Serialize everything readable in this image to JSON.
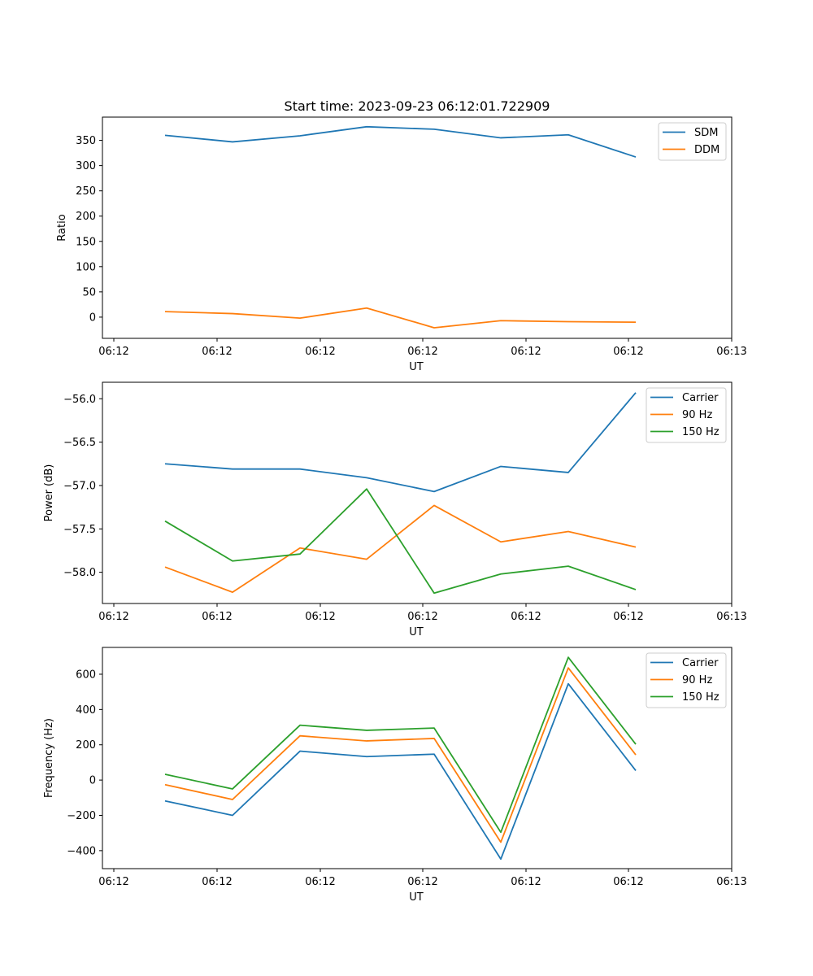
{
  "colors": {
    "c0": "#1f77b4",
    "c1": "#ff7f0e",
    "c2": "#2ca02c"
  },
  "chart_data": [
    {
      "type": "line",
      "title": "Start time: 2023-09-23 06:12:01.722909",
      "xlabel": "UT",
      "ylabel": "Ratio",
      "x_tick_labels": [
        "06:12",
        "06:12",
        "06:12",
        "06:12",
        "06:12",
        "06:12",
        "06:13"
      ],
      "y_ticks": [
        0,
        50,
        100,
        150,
        200,
        250,
        300,
        350
      ],
      "y_tick_labels": [
        "0",
        "50",
        "100",
        "150",
        "200",
        "250",
        "300",
        "350"
      ],
      "ylim": [
        -42,
        396
      ],
      "legend": "top-right",
      "series": [
        {
          "name": "SDM",
          "color": "#1f77b4",
          "values": [
            360,
            347,
            359,
            377,
            372,
            355,
            361,
            317
          ]
        },
        {
          "name": "DDM",
          "color": "#ff7f0e",
          "values": [
            11,
            7,
            -2,
            18,
            -21,
            -7,
            -9,
            -10
          ]
        }
      ]
    },
    {
      "type": "line",
      "title": "",
      "xlabel": "UT",
      "ylabel": "Power (dB)",
      "x_tick_labels": [
        "06:12",
        "06:12",
        "06:12",
        "06:12",
        "06:12",
        "06:12",
        "06:13"
      ],
      "y_ticks": [
        -58.0,
        -57.5,
        -57.0,
        -56.5,
        -56.0
      ],
      "y_tick_labels": [
        "−58.0",
        "−57.5",
        "−57.0",
        "−56.5",
        "−56.0"
      ],
      "ylim": [
        -58.36,
        -55.81
      ],
      "legend": "top-right",
      "series": [
        {
          "name": "Carrier",
          "color": "#1f77b4",
          "values": [
            -56.75,
            -56.81,
            -56.81,
            -56.91,
            -57.07,
            -56.78,
            -56.85,
            -55.93
          ]
        },
        {
          "name": "90 Hz",
          "color": "#ff7f0e",
          "values": [
            -57.94,
            -58.23,
            -57.72,
            -57.85,
            -57.23,
            -57.65,
            -57.53,
            -57.71
          ]
        },
        {
          "name": "150 Hz",
          "color": "#2ca02c",
          "values": [
            -57.41,
            -57.87,
            -57.79,
            -57.04,
            -58.24,
            -58.02,
            -57.93,
            -58.2
          ]
        }
      ]
    },
    {
      "type": "line",
      "title": "",
      "xlabel": "UT",
      "ylabel": "Frequency (Hz)",
      "x_tick_labels": [
        "06:12",
        "06:12",
        "06:12",
        "06:12",
        "06:12",
        "06:12",
        "06:13"
      ],
      "y_ticks": [
        -400,
        -200,
        0,
        200,
        400,
        600
      ],
      "y_tick_labels": [
        "−400",
        "−200",
        "0",
        "200",
        "400",
        "600"
      ],
      "ylim": [
        -502,
        752
      ],
      "legend": "top-right",
      "series": [
        {
          "name": "Carrier",
          "color": "#1f77b4",
          "values": [
            -118,
            -200,
            164,
            133,
            147,
            -448,
            546,
            54
          ]
        },
        {
          "name": "90 Hz",
          "color": "#ff7f0e",
          "values": [
            -26,
            -110,
            251,
            222,
            236,
            -352,
            636,
            143
          ]
        },
        {
          "name": "150 Hz",
          "color": "#2ca02c",
          "values": [
            33,
            -50,
            311,
            282,
            295,
            -296,
            696,
            203
          ]
        }
      ]
    }
  ]
}
